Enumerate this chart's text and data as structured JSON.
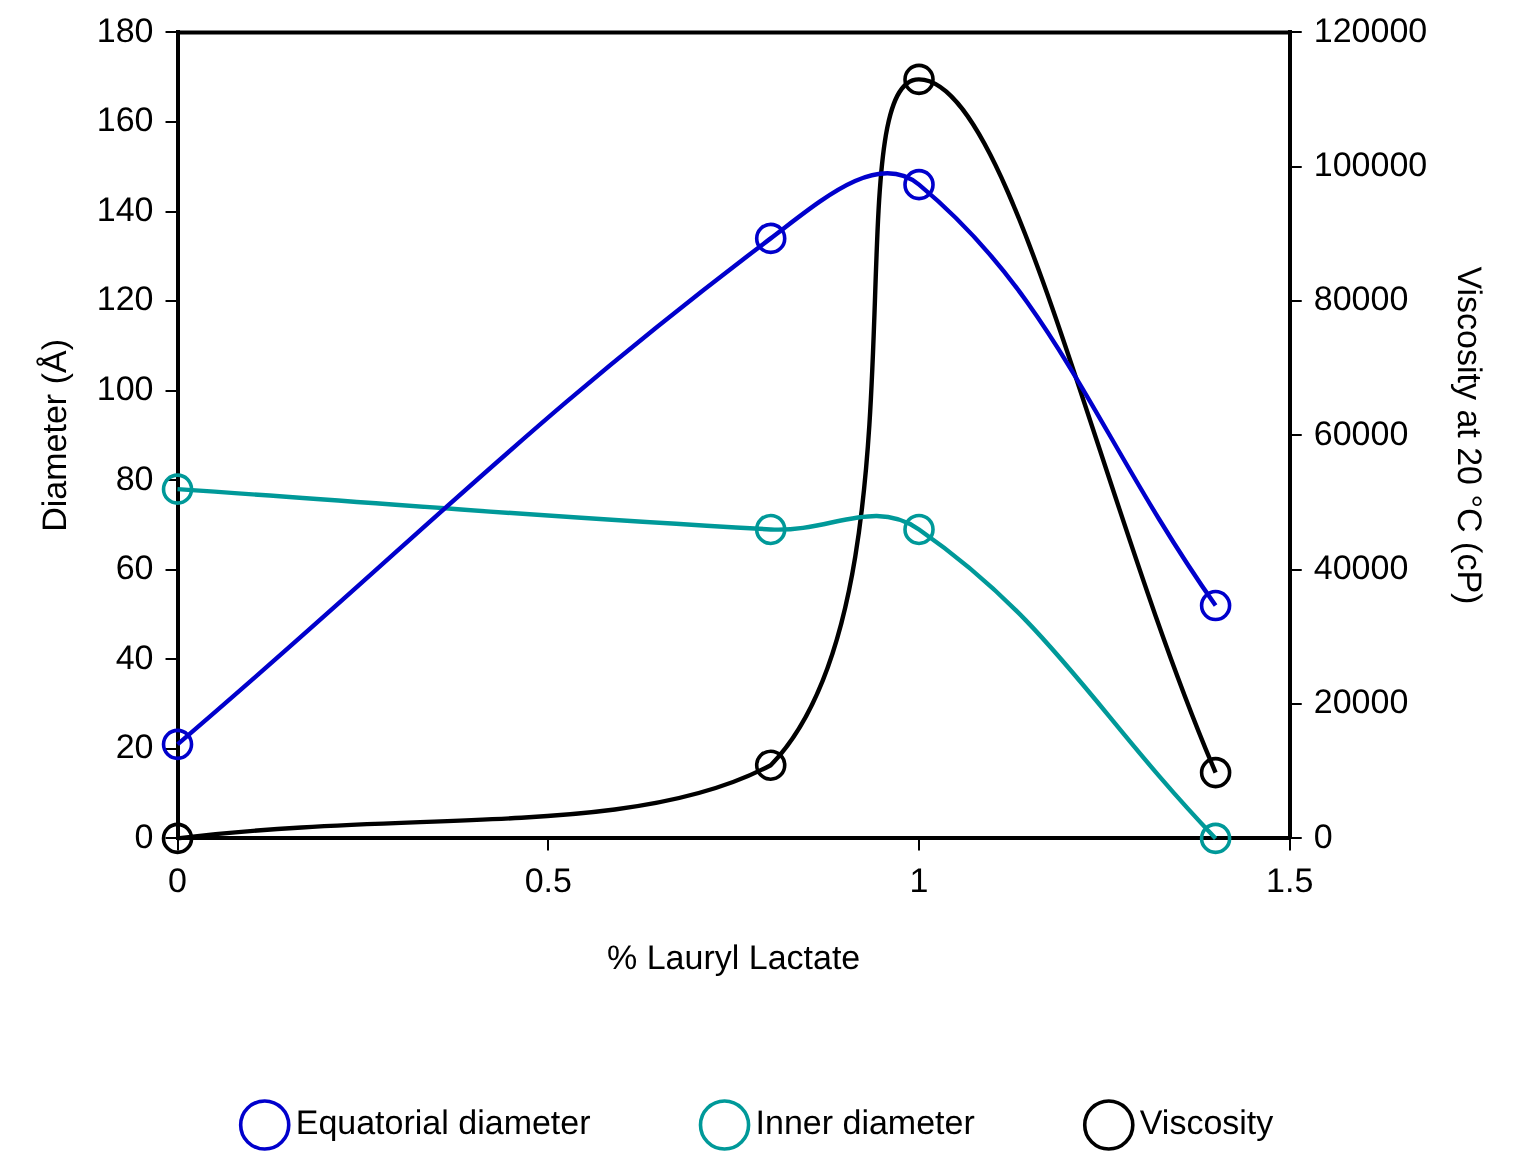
{
  "chart_data": {
    "type": "line",
    "xlabel": "% Lauryl Lactate",
    "ylabel": "Diameter (Å)",
    "y2label": "Viscosity at 20 °C (cP)",
    "xlim": [
      0,
      1.5
    ],
    "xticks": [
      0,
      0.5,
      1,
      1.5
    ],
    "ylim": [
      0,
      180
    ],
    "yticks": [
      0,
      20,
      40,
      60,
      80,
      100,
      120,
      140,
      160,
      180
    ],
    "y2lim": [
      0,
      120000
    ],
    "y2ticks": [
      0,
      20000,
      40000,
      60000,
      80000,
      100000,
      120000
    ],
    "grid": false,
    "legend": "bottom",
    "marker": "circle",
    "line_style": "solid",
    "series": [
      {
        "name": "Equatorial diameter",
        "color": "#0000cc",
        "x": [
          0,
          0.8,
          1,
          1.4
        ],
        "values": [
          21,
          134,
          146,
          52
        ]
      },
      {
        "name": "Inner diameter",
        "color": "#009999",
        "x": [
          0,
          0.8,
          1,
          1.4
        ],
        "values": [
          78,
          69,
          69,
          0
        ]
      },
      {
        "name": "Viscosity",
        "color": "#000000",
        "axis": "y2",
        "x": [
          0,
          0.8,
          1,
          1.4
        ],
        "values": [
          0,
          10900,
          113000,
          9800
        ]
      }
    ]
  }
}
